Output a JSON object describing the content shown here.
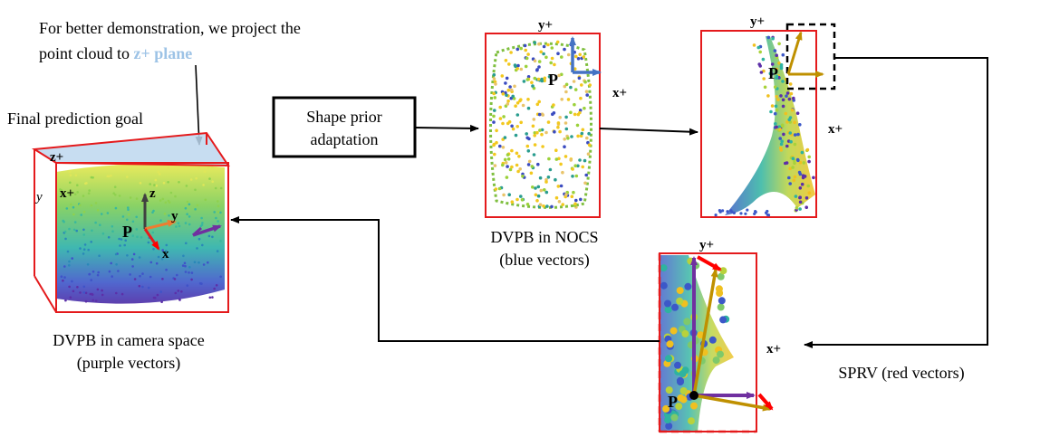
{
  "annotation": {
    "line1": "For better demonstration, we project the",
    "line2_prefix": "point cloud to ",
    "line2_highlight": "z+ plane"
  },
  "final_goal_label": "Final prediction goal",
  "shape_prior_box": {
    "line1": "Shape prior",
    "line2": "adaptation"
  },
  "camera_panel": {
    "axis_zplus": "z+",
    "axis_xplus": "x+",
    "axis_y_side": "y",
    "origin_label": "P",
    "axis_z": "z",
    "axis_y": "y",
    "axis_x": "x",
    "caption_line1": "DVPB in camera space",
    "caption_line2": "(purple vectors)"
  },
  "nocs_panel": {
    "axis_yplus": "y+",
    "axis_xplus": "x+",
    "origin_label": "P",
    "caption_line1": "DVPB in NOCS",
    "caption_line2": "(blue vectors)"
  },
  "sprv_top_panel": {
    "axis_yplus": "y+",
    "axis_xplus": "x+",
    "origin_label": "P"
  },
  "zoom_panel": {
    "axis_yplus": "y+",
    "axis_xplus": "x+",
    "origin_label": "P",
    "caption": "SPRV (red vectors)"
  },
  "colors": {
    "frame_red": "#e41a1c",
    "purple": "#7030a0",
    "blue": "#4472c4",
    "gold": "#bf9000",
    "red_arrow": "#ff0000",
    "highlight_text": "#9dc3e6",
    "plane_fill": "#bdd7ee"
  }
}
